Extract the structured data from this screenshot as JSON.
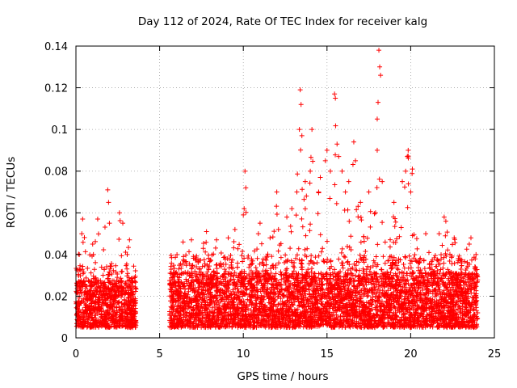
{
  "chart_data": {
    "type": "scatter",
    "title": "Day 112 of 2024, Rate Of TEC Index for receiver kalg",
    "xlabel": "GPS time / hours",
    "ylabel": "ROTI / TECUs",
    "xlim": [
      0,
      25
    ],
    "ylim": [
      0,
      0.14
    ],
    "x_ticks": [
      "0",
      "5",
      "10",
      "15",
      "20",
      "25"
    ],
    "x_tick_values": [
      0,
      5,
      10,
      15,
      20,
      25
    ],
    "y_ticks": [
      "0",
      "0.02",
      "0.04",
      "0.06",
      "0.08",
      "0.1",
      "0.12",
      "0.14"
    ],
    "y_tick_values": [
      0,
      0.02,
      0.04,
      0.06,
      0.08,
      0.1,
      0.12,
      0.14
    ],
    "grid": true,
    "marker": "+",
    "series": [
      {
        "name": "ROTI",
        "color": "#ff0000",
        "segments": [
          {
            "x_start": 0.0,
            "x_end": 3.6,
            "typical_min": 0.005,
            "typical_max": 0.035
          },
          {
            "x_start": 5.6,
            "x_end": 24.0,
            "typical_min": 0.005,
            "typical_max": 0.04
          }
        ],
        "peaks": [
          {
            "x": 0.2,
            "y": 0.04
          },
          {
            "x": 0.4,
            "y": 0.057
          },
          {
            "x": 0.35,
            "y": 0.05
          },
          {
            "x": 1.3,
            "y": 0.057
          },
          {
            "x": 1.0,
            "y": 0.045
          },
          {
            "x": 1.9,
            "y": 0.071
          },
          {
            "x": 1.95,
            "y": 0.065
          },
          {
            "x": 2.0,
            "y": 0.055
          },
          {
            "x": 2.6,
            "y": 0.06
          },
          {
            "x": 2.8,
            "y": 0.055
          },
          {
            "x": 3.2,
            "y": 0.047
          },
          {
            "x": 6.4,
            "y": 0.046
          },
          {
            "x": 6.9,
            "y": 0.047
          },
          {
            "x": 7.8,
            "y": 0.051
          },
          {
            "x": 8.4,
            "y": 0.047
          },
          {
            "x": 9.1,
            "y": 0.048
          },
          {
            "x": 9.5,
            "y": 0.052
          },
          {
            "x": 10.0,
            "y": 0.059
          },
          {
            "x": 10.05,
            "y": 0.062
          },
          {
            "x": 10.1,
            "y": 0.08
          },
          {
            "x": 10.15,
            "y": 0.072
          },
          {
            "x": 10.9,
            "y": 0.05
          },
          {
            "x": 11.6,
            "y": 0.048
          },
          {
            "x": 12.1,
            "y": 0.052
          },
          {
            "x": 12.6,
            "y": 0.058
          },
          {
            "x": 12.9,
            "y": 0.062
          },
          {
            "x": 13.2,
            "y": 0.07
          },
          {
            "x": 13.35,
            "y": 0.1
          },
          {
            "x": 13.4,
            "y": 0.119
          },
          {
            "x": 13.45,
            "y": 0.112
          },
          {
            "x": 13.5,
            "y": 0.097
          },
          {
            "x": 13.7,
            "y": 0.075
          },
          {
            "x": 14.0,
            "y": 0.08
          },
          {
            "x": 14.1,
            "y": 0.1
          },
          {
            "x": 14.5,
            "y": 0.07
          },
          {
            "x": 14.9,
            "y": 0.085
          },
          {
            "x": 15.0,
            "y": 0.09
          },
          {
            "x": 15.2,
            "y": 0.08
          },
          {
            "x": 15.45,
            "y": 0.117
          },
          {
            "x": 15.5,
            "y": 0.115
          },
          {
            "x": 15.6,
            "y": 0.093
          },
          {
            "x": 15.7,
            "y": 0.087
          },
          {
            "x": 16.1,
            "y": 0.07
          },
          {
            "x": 16.6,
            "y": 0.094
          },
          {
            "x": 16.7,
            "y": 0.085
          },
          {
            "x": 17.0,
            "y": 0.065
          },
          {
            "x": 17.5,
            "y": 0.07
          },
          {
            "x": 17.9,
            "y": 0.06
          },
          {
            "x": 18.0,
            "y": 0.105
          },
          {
            "x": 18.05,
            "y": 0.113
          },
          {
            "x": 18.1,
            "y": 0.138
          },
          {
            "x": 18.15,
            "y": 0.13
          },
          {
            "x": 18.2,
            "y": 0.126
          },
          {
            "x": 18.0,
            "y": 0.09
          },
          {
            "x": 18.3,
            "y": 0.075
          },
          {
            "x": 19.0,
            "y": 0.065
          },
          {
            "x": 19.5,
            "y": 0.075
          },
          {
            "x": 19.7,
            "y": 0.08
          },
          {
            "x": 19.8,
            "y": 0.087
          },
          {
            "x": 19.85,
            "y": 0.09
          },
          {
            "x": 20.1,
            "y": 0.081
          },
          {
            "x": 20.0,
            "y": 0.07
          },
          {
            "x": 20.9,
            "y": 0.05
          },
          {
            "x": 21.7,
            "y": 0.05
          },
          {
            "x": 22.0,
            "y": 0.058
          },
          {
            "x": 22.1,
            "y": 0.056
          },
          {
            "x": 22.6,
            "y": 0.048
          },
          {
            "x": 23.6,
            "y": 0.048
          },
          {
            "x": 23.5,
            "y": 0.045
          },
          {
            "x": 12.0,
            "y": 0.07
          },
          {
            "x": 11.0,
            "y": 0.055
          },
          {
            "x": 16.3,
            "y": 0.075
          },
          {
            "x": 14.6,
            "y": 0.077
          },
          {
            "x": 15.9,
            "y": 0.08
          }
        ]
      }
    ]
  }
}
